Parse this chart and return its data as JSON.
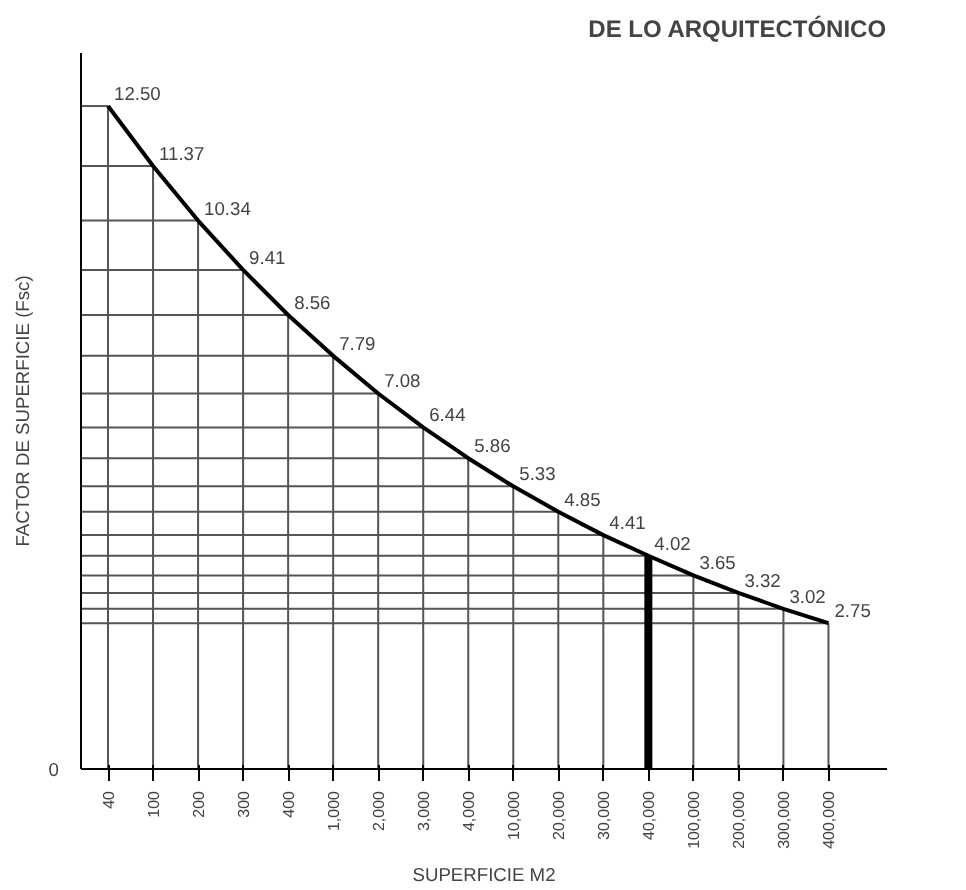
{
  "chart_data": {
    "type": "line",
    "title": "DE LO ARQUITECTÓNICO",
    "xlabel": "SUPERFICIE M2",
    "ylabel": "FACTOR DE SUPERFICIE (Fsc)",
    "categories": [
      "40",
      "100",
      "200",
      "300",
      "400",
      "1,000",
      "2,000",
      "3,000",
      "4,000",
      "10,000",
      "20,000",
      "30,000",
      "40,000",
      "100,000",
      "200,000",
      "300,000",
      "400,000"
    ],
    "series": [
      {
        "color": "#000000",
        "values": [
          12.5,
          11.37,
          10.34,
          9.41,
          8.56,
          7.79,
          7.08,
          6.44,
          5.86,
          5.33,
          4.85,
          4.41,
          4.02,
          3.65,
          3.32,
          3.02,
          2.75
        ],
        "value_labels": [
          "12.50",
          "11.37",
          "10.34",
          "9.41",
          "8.56",
          "7.79",
          "7.08",
          "6.44",
          "5.86",
          "5.33",
          "4.85",
          "4.41",
          "4.02",
          "3.65",
          "3.32",
          "3.02",
          "2.75"
        ]
      }
    ],
    "annotations": [
      "0"
    ],
    "grid": true,
    "line_style": "solid",
    "ref_lines": [
      {
        "axis": "x",
        "value": "40,000",
        "color": "#000000"
      }
    ]
  }
}
